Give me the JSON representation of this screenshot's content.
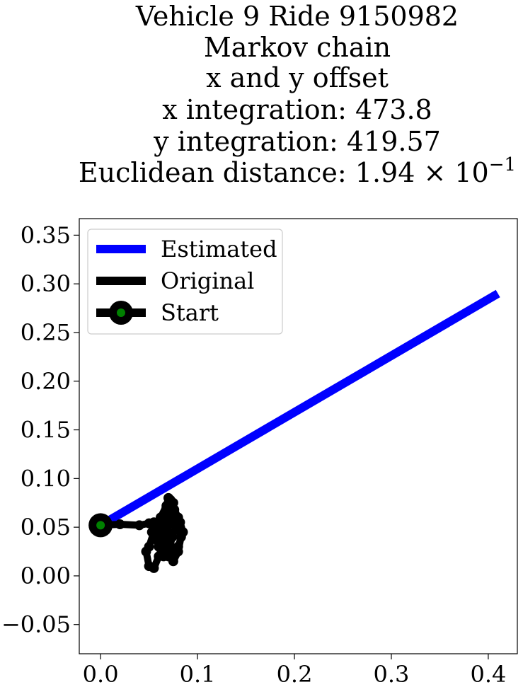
{
  "chart_data": {
    "type": "line",
    "title_lines": [
      "Vehicle 9 Ride 9150982",
      "Markov chain",
      "x and y offset",
      "x integration: 473.8",
      "y integration: 419.57",
      "Euclidean distance: 1.94 × 10"
    ],
    "title_exponent": "−1",
    "xlim": [
      -0.022,
      0.43
    ],
    "ylim": [
      -0.08,
      0.367
    ],
    "x_ticks": [
      {
        "value": 0.0,
        "label": "0.0"
      },
      {
        "value": 0.1,
        "label": "0.1"
      },
      {
        "value": 0.2,
        "label": "0.2"
      },
      {
        "value": 0.3,
        "label": "0.3"
      },
      {
        "value": 0.4,
        "label": "0.4"
      }
    ],
    "y_ticks": [
      {
        "value": -0.05,
        "label": "−0.05"
      },
      {
        "value": 0.0,
        "label": "0.00"
      },
      {
        "value": 0.05,
        "label": "0.05"
      },
      {
        "value": 0.1,
        "label": "0.10"
      },
      {
        "value": 0.15,
        "label": "0.15"
      },
      {
        "value": 0.2,
        "label": "0.20"
      },
      {
        "value": 0.25,
        "label": "0.25"
      },
      {
        "value": 0.3,
        "label": "0.30"
      },
      {
        "value": 0.35,
        "label": "0.35"
      }
    ],
    "grid": false,
    "legend_position": "top-left",
    "series": [
      {
        "name": "Estimated",
        "color": "#0000ff",
        "x": [
          0.0,
          0.41
        ],
        "y": [
          0.052,
          0.29
        ]
      },
      {
        "name": "Original",
        "color": "#000000",
        "x": [
          0.0,
          0.02,
          0.04,
          0.05,
          0.06,
          0.065,
          0.07,
          0.075,
          0.078,
          0.082,
          0.085,
          0.08,
          0.075,
          0.07,
          0.068,
          0.072,
          0.076,
          0.08,
          0.083,
          0.08,
          0.075,
          0.07,
          0.065,
          0.06,
          0.055,
          0.05,
          0.047,
          0.05,
          0.055,
          0.06,
          0.065,
          0.068,
          0.072,
          0.075,
          0.07,
          0.068,
          0.062,
          0.058,
          0.055,
          0.053,
          0.056,
          0.06,
          0.065,
          0.07,
          0.074,
          0.078,
          0.08,
          0.076,
          0.07,
          0.066,
          0.063,
          0.065,
          0.07,
          0.073,
          0.068,
          0.065
        ],
        "y": [
          0.052,
          0.053,
          0.052,
          0.054,
          0.05,
          0.045,
          0.055,
          0.06,
          0.05,
          0.055,
          0.045,
          0.03,
          0.02,
          0.035,
          0.07,
          0.078,
          0.065,
          0.055,
          0.04,
          0.025,
          0.015,
          0.02,
          0.03,
          0.04,
          0.045,
          0.03,
          0.025,
          0.01,
          0.008,
          0.02,
          0.035,
          0.05,
          0.065,
          0.075,
          0.08,
          0.072,
          0.06,
          0.05,
          0.055,
          0.045,
          0.04,
          0.03,
          0.02,
          0.025,
          0.04,
          0.052,
          0.06,
          0.068,
          0.07,
          0.058,
          0.045,
          0.035,
          0.03,
          0.042,
          0.05,
          0.048
        ]
      },
      {
        "name": "Start",
        "color": "#000000",
        "marker_color": "#008000",
        "x": [
          0.0
        ],
        "y": [
          0.052
        ]
      }
    ]
  }
}
